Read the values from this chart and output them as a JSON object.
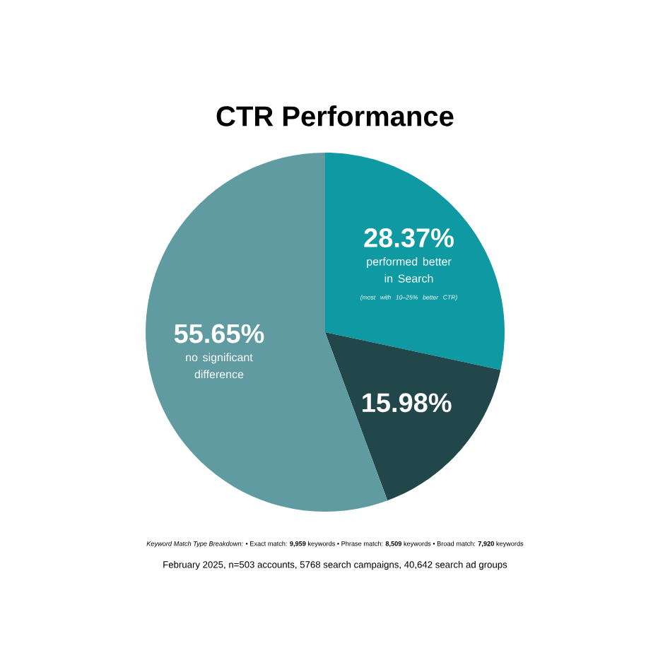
{
  "chart_data": {
    "type": "pie",
    "title": "CTR Performance",
    "categories": [
      "performed better in Search",
      null,
      "no significant difference"
    ],
    "values": [
      28.37,
      15.98,
      55.65
    ],
    "value_labels": [
      "28.37%",
      "15.98%",
      "55.65%"
    ],
    "colors": [
      "#0f9aa3",
      "#22474b",
      "#5f9ba0"
    ],
    "annotations": [
      "(most with 10–25% better CTR)",
      "*Keyword Match Type Breakdown:*  •  Exact match: **9,959** keywords  •  Phrase match: **8,509** keywords  •  Broad match: **7,920** keywords",
      "February 2025, n=503 accounts, 5768 search campaigns, 40,642 search ad groups"
    ]
  }
}
